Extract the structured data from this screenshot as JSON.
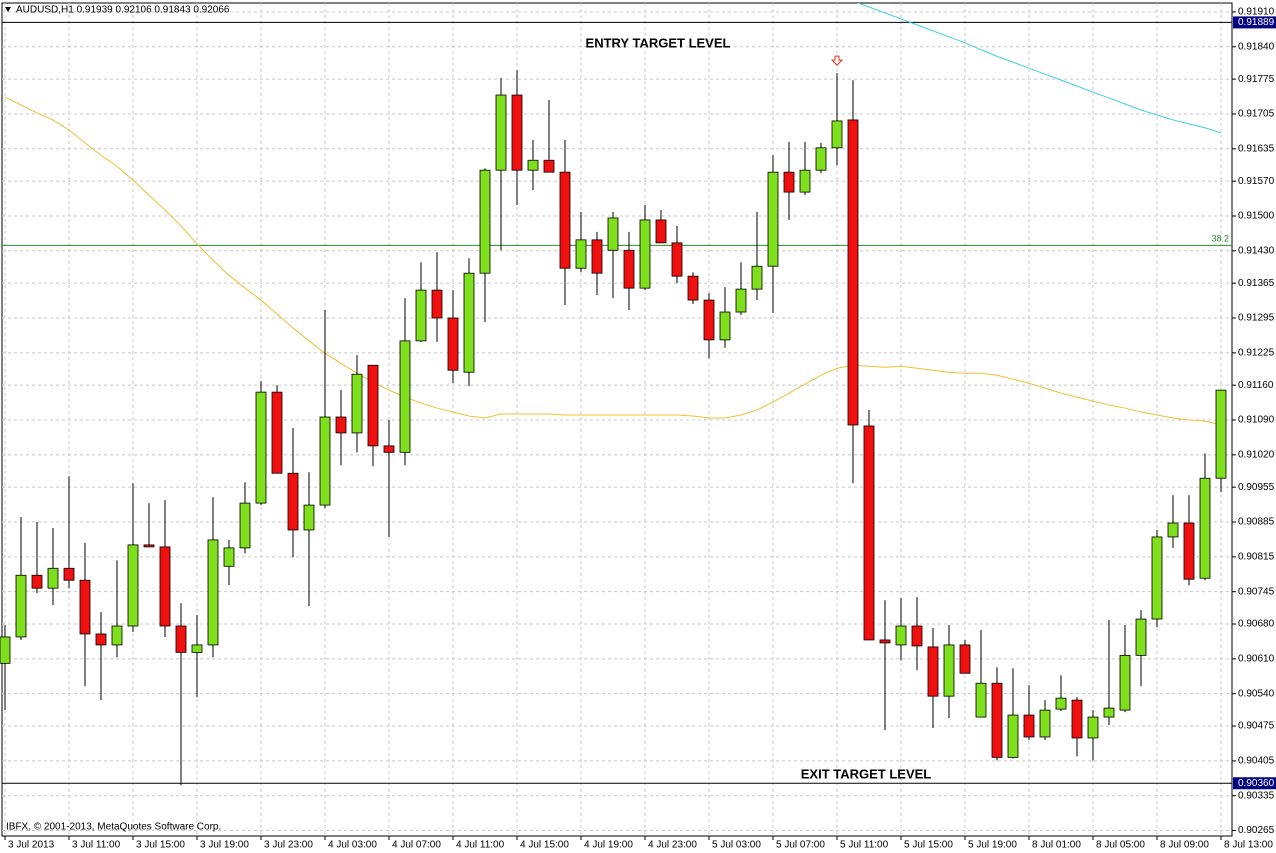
{
  "chart_data": {
    "type": "candlestick",
    "title": "AUDUSD,H1  0.91939 0.92106 0.91843 0.92066",
    "footer": "IBFX, © 2001-2013, MetaQuotes Software Corp.",
    "annotations": [
      "ENTRY TARGET LEVEL",
      "EXIT TARGET LEVEL"
    ],
    "categories": [
      "3 Jul 2013",
      null,
      null,
      null,
      "3 Jul 11:00",
      null,
      null,
      null,
      "3 Jul 15:00",
      null,
      null,
      null,
      "3 Jul 19:00",
      null,
      null,
      null,
      "3 Jul 23:00",
      null,
      null,
      null,
      "4 Jul 03:00",
      null,
      null,
      null,
      "4 Jul 07:00",
      null,
      null,
      null,
      "4 Jul 11:00",
      null,
      null,
      null,
      "4 Jul 15:00",
      null,
      null,
      null,
      "4 Jul 19:00",
      null,
      null,
      null,
      "4 Jul 23:00",
      null,
      null,
      null,
      "5 Jul 03:00",
      null,
      null,
      null,
      "5 Jul 07:00",
      null,
      null,
      null,
      "5 Jul 11:00",
      null,
      null,
      null,
      "5 Jul 15:00",
      null,
      null,
      null,
      "5 Jul 19:00",
      null,
      null,
      null,
      "8 Jul 01:00",
      null,
      null,
      null,
      "8 Jul 05:00",
      null,
      null,
      null,
      "8 Jul 09:00",
      null,
      null,
      null,
      "8 Jul 13:00"
    ],
    "open": [
      0.90601,
      0.90654,
      0.90778,
      0.90752,
      0.90792,
      0.90768,
      0.9066,
      0.90638,
      0.90676,
      0.90839,
      0.90835,
      0.90676,
      0.90623,
      0.90638,
      0.90796,
      0.90833,
      0.90923,
      0.91146,
      0.90983,
      0.90869,
      0.90919,
      0.91096,
      0.91064,
      0.912,
      0.91038,
      0.91025,
      0.91249,
      0.91351,
      0.91295,
      0.91186,
      0.91385,
      0.91592,
      0.91743,
      0.91592,
      0.91612,
      0.91588,
      0.91395,
      0.91452,
      0.91431,
      0.91431,
      0.91355,
      0.91492,
      0.91446,
      0.91379,
      0.91331,
      0.91251,
      0.91307,
      0.91353,
      0.91399,
      0.91588,
      0.91548,
      0.91592,
      0.91637,
      0.91693,
      0.91078,
      0.90648,
      0.90638,
      0.90676,
      0.90634,
      0.90535,
      0.90638,
      0.90493,
      0.90561,
      0.90412,
      0.90497,
      0.90453,
      0.90509,
      0.90527,
      0.90451,
      0.90493,
      0.90507,
      0.90617,
      0.9069,
      0.90855,
      0.90883,
      0.90772,
      0.90973
    ],
    "high": [
      0.90678,
      0.90895,
      0.90885,
      0.90873,
      0.90977,
      0.90843,
      0.90704,
      0.90808,
      0.90963,
      0.90923,
      0.90929,
      0.90722,
      0.90698,
      0.90935,
      0.90849,
      0.90965,
      0.91168,
      0.9116,
      0.91074,
      0.90985,
      0.91311,
      0.9115,
      0.9122,
      0.912,
      0.9109,
      0.91335,
      0.91407,
      0.91427,
      0.91351,
      0.91415,
      0.91596,
      0.91777,
      0.91793,
      0.91653,
      0.91733,
      0.91653,
      0.91508,
      0.91468,
      0.91508,
      0.91468,
      0.91522,
      0.91512,
      0.9148,
      0.91387,
      0.91345,
      0.91357,
      0.91407,
      0.91508,
      0.91622,
      0.91649,
      0.91649,
      0.91647,
      0.91787,
      0.91773,
      0.9111,
      0.90728,
      0.90732,
      0.90734,
      0.90672,
      0.90678,
      0.90648,
      0.90668,
      0.90593,
      0.90591,
      0.90557,
      0.90527,
      0.90577,
      0.90533,
      0.90507,
      0.90688,
      0.90678,
      0.90708,
      0.90869,
      0.90939,
      0.90939,
      0.91023,
      0.9115
    ],
    "low": [
      0.90507,
      0.90648,
      0.90742,
      0.90718,
      0.90752,
      0.90555,
      0.90527,
      0.90613,
      0.90664,
      0.90835,
      0.90654,
      0.90356,
      0.90533,
      0.90613,
      0.90758,
      0.90822,
      0.90919,
      0.90983,
      0.90814,
      0.90716,
      0.90913,
      0.90999,
      0.91025,
      0.90997,
      0.90855,
      0.90999,
      0.91247,
      0.91247,
      0.91164,
      0.91158,
      0.91287,
      0.91431,
      0.91522,
      0.91552,
      0.91588,
      0.91321,
      0.91387,
      0.91341,
      0.91335,
      0.91311,
      0.91351,
      0.91446,
      0.91365,
      0.91323,
      0.91214,
      0.91235,
      0.91301,
      0.91331,
      0.91305,
      0.91492,
      0.91542,
      0.91586,
      0.91602,
      0.90963,
      0.90648,
      0.90467,
      0.90607,
      0.90587,
      0.90471,
      0.90491,
      0.90581,
      0.90493,
      0.90406,
      0.9041,
      0.90447,
      0.90447,
      0.90505,
      0.90414,
      0.90406,
      0.90477,
      0.90503,
      0.90555,
      0.90674,
      0.90833,
      0.90758,
      0.90768,
      0.90945
    ],
    "close": [
      0.90654,
      0.90778,
      0.90752,
      0.90792,
      0.90768,
      0.9066,
      0.90638,
      0.90676,
      0.90839,
      0.90835,
      0.90676,
      0.90623,
      0.90638,
      0.90849,
      0.90833,
      0.90923,
      0.91146,
      0.90983,
      0.90869,
      0.90919,
      0.91096,
      0.91064,
      0.91182,
      0.91038,
      0.91025,
      0.91249,
      0.91351,
      0.91295,
      0.9119,
      0.91385,
      0.91592,
      0.91743,
      0.91592,
      0.91612,
      0.91588,
      0.91395,
      0.91452,
      0.91385,
      0.91496,
      0.91355,
      0.91492,
      0.91446,
      0.91379,
      0.91331,
      0.91251,
      0.91307,
      0.91353,
      0.91399,
      0.91588,
      0.91548,
      0.91592,
      0.91637,
      0.91691,
      0.9108,
      0.90648,
      0.90642,
      0.90676,
      0.90636,
      0.90535,
      0.90638,
      0.90581,
      0.90561,
      0.90412,
      0.90497,
      0.90453,
      0.90507,
      0.90531,
      0.90451,
      0.90493,
      0.90511,
      0.90617,
      0.9069,
      0.90855,
      0.90883,
      0.9077,
      0.90973,
      0.9115
    ],
    "up_color": "#7ee01c",
    "down_color": "#f01010",
    "overlays": [
      {
        "color": "#f0c030",
        "values": [
          0.91739,
          0.91723,
          0.91707,
          0.91693,
          0.91673,
          0.91647,
          0.91622,
          0.916,
          0.91572,
          0.91542,
          0.91512,
          0.9148,
          0.91444,
          0.91411,
          0.91381,
          0.91355,
          0.91331,
          0.91303,
          0.91275,
          0.91249,
          0.91224,
          0.91204,
          0.91184,
          0.91166,
          0.9115,
          0.91136,
          0.91124,
          0.91114,
          0.91106,
          0.91098,
          0.91094,
          0.91102,
          0.91102,
          0.91102,
          0.91102,
          0.911,
          0.911,
          0.911,
          0.911,
          0.911,
          0.911,
          0.911,
          0.911,
          0.91098,
          0.91094,
          0.91094,
          0.911,
          0.9111,
          0.91126,
          0.91144,
          0.91162,
          0.9118,
          0.91194,
          0.912,
          0.91198,
          0.91196,
          0.91198,
          0.91194,
          0.9119,
          0.91186,
          0.91184,
          0.91184,
          0.9118,
          0.91172,
          0.91164,
          0.91154,
          0.91144,
          0.91136,
          0.91128,
          0.9112,
          0.91114,
          0.91106,
          0.911,
          0.91094,
          0.9109,
          0.91088,
          0.9108
        ]
      },
      {
        "color": "#40d0e8",
        "values": [
          null,
          null,
          null,
          null,
          null,
          null,
          null,
          null,
          null,
          null,
          null,
          null,
          null,
          null,
          null,
          null,
          null,
          null,
          null,
          null,
          null,
          null,
          null,
          null,
          null,
          null,
          null,
          null,
          null,
          null,
          null,
          null,
          null,
          null,
          null,
          null,
          null,
          null,
          null,
          null,
          null,
          null,
          null,
          null,
          null,
          null,
          null,
          null,
          null,
          null,
          null,
          null,
          null,
          0.91932,
          0.9192,
          0.91908,
          0.91896,
          0.91884,
          0.91872,
          0.9186,
          0.91848,
          0.91834,
          0.91821,
          0.91809,
          0.91797,
          0.91785,
          0.91773,
          0.91761,
          0.91749,
          0.91737,
          0.91725,
          0.91713,
          0.91703,
          0.91693,
          0.91685,
          0.91677,
          0.91667
        ]
      }
    ],
    "horizontal_lines": [
      0.91889,
      {
        "value": 0.9036,
        "label": "0.90360"
      }
    ],
    "fib_line": {
      "value": 0.91441,
      "label": "38.2",
      "color": "#2a8a2a"
    },
    "ylim": [
      0.90254,
      0.91928
    ],
    "yticks": [
      {
        "value": 0.9191,
        "label": "0.91910"
      },
      {
        "value": 0.9184,
        "label": "0.91840"
      },
      0.91775,
      0.91705,
      0.91635,
      {
        "value": 0.9157,
        "label": "0.91570"
      },
      {
        "value": 0.915,
        "label": "0.91500"
      },
      {
        "value": 0.9143,
        "label": "0.91430"
      },
      0.91365,
      0.91295,
      0.91225,
      {
        "value": 0.9116,
        "label": "0.91160"
      },
      {
        "value": 0.9109,
        "label": "0.91090"
      },
      {
        "value": 0.9102,
        "label": "0.91020"
      },
      0.90955,
      0.90885,
      0.90815,
      0.90745,
      {
        "value": 0.9068,
        "label": "0.90680"
      },
      {
        "value": 0.9061,
        "label": "0.90610"
      },
      {
        "value": 0.9054,
        "label": "0.90540"
      },
      0.90475,
      0.90405,
      0.90335,
      0.90265
    ],
    "grid": true
  }
}
